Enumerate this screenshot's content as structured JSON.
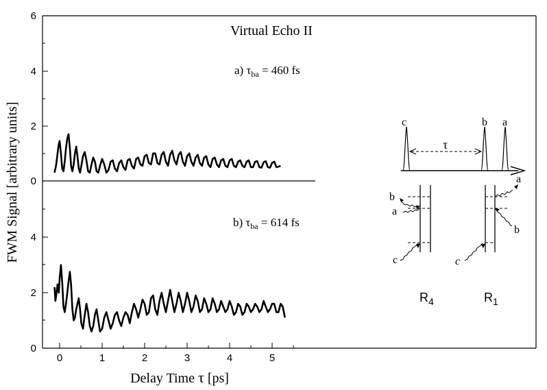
{
  "chart_data": [
    {
      "type": "line",
      "panel_label": "a)",
      "tau_ba_value": "460 fs",
      "title": "Virtual Echo II",
      "ylim": [
        0,
        6
      ],
      "yticks": [
        0,
        2,
        4,
        6
      ],
      "xlim": [
        -0.2,
        5.3
      ],
      "series": [
        {
          "x": [
            -0.12,
            -0.08,
            -0.04,
            -0.02,
            0.0,
            0.03,
            0.06,
            0.09,
            0.12,
            0.15,
            0.18,
            0.21,
            0.24,
            0.27,
            0.3,
            0.33,
            0.36,
            0.39,
            0.42,
            0.45,
            0.48,
            0.51,
            0.55,
            0.59,
            0.63,
            0.67,
            0.71,
            0.75,
            0.79,
            0.83,
            0.87,
            0.91,
            0.95,
            1.0,
            1.05,
            1.1,
            1.15,
            1.2,
            1.25,
            1.3,
            1.35,
            1.4,
            1.45,
            1.5,
            1.55,
            1.6,
            1.65,
            1.7,
            1.75,
            1.8,
            1.85,
            1.9,
            1.95,
            2.0,
            2.05,
            2.1,
            2.15,
            2.2,
            2.25,
            2.3,
            2.35,
            2.4,
            2.45,
            2.5,
            2.55,
            2.6,
            2.65,
            2.7,
            2.75,
            2.8,
            2.85,
            2.9,
            2.95,
            3.0,
            3.05,
            3.1,
            3.15,
            3.2,
            3.25,
            3.3,
            3.35,
            3.4,
            3.45,
            3.5,
            3.55,
            3.6,
            3.65,
            3.7,
            3.75,
            3.8,
            3.85,
            3.9,
            3.95,
            4.0,
            4.05,
            4.1,
            4.15,
            4.2,
            4.25,
            4.3,
            4.35,
            4.4,
            4.45,
            4.5,
            4.55,
            4.6,
            4.65,
            4.7,
            4.75,
            4.8,
            4.85,
            4.9,
            4.95,
            5.0,
            5.05,
            5.1,
            5.15,
            5.2
          ],
          "y": [
            0.3,
            0.6,
            1.1,
            1.35,
            1.45,
            1.0,
            0.45,
            0.35,
            0.7,
            1.2,
            1.55,
            1.7,
            1.2,
            0.55,
            0.35,
            0.6,
            1.0,
            1.25,
            0.9,
            0.45,
            0.3,
            0.55,
            0.9,
            1.05,
            0.75,
            0.35,
            0.3,
            0.6,
            0.85,
            0.7,
            0.35,
            0.3,
            0.55,
            0.8,
            0.6,
            0.3,
            0.4,
            0.7,
            0.75,
            0.45,
            0.35,
            0.65,
            0.75,
            0.5,
            0.4,
            0.75,
            0.8,
            0.55,
            0.45,
            0.8,
            0.85,
            0.6,
            0.55,
            0.9,
            0.95,
            0.65,
            0.6,
            1.0,
            1.0,
            0.65,
            0.6,
            0.95,
            1.05,
            0.7,
            0.55,
            0.95,
            1.1,
            0.75,
            0.6,
            0.95,
            1.05,
            0.7,
            0.55,
            0.9,
            1.0,
            0.7,
            0.55,
            0.85,
            0.95,
            0.65,
            0.55,
            0.85,
            0.9,
            0.6,
            0.5,
            0.8,
            0.85,
            0.6,
            0.5,
            0.75,
            0.8,
            0.55,
            0.5,
            0.75,
            0.8,
            0.55,
            0.5,
            0.7,
            0.75,
            0.55,
            0.5,
            0.7,
            0.75,
            0.5,
            0.5,
            0.7,
            0.72,
            0.5,
            0.48,
            0.68,
            0.72,
            0.5,
            0.48,
            0.66,
            0.7,
            0.5,
            0.52,
            0.55
          ]
        }
      ]
    },
    {
      "type": "line",
      "panel_label": "b)",
      "tau_ba_value": "614 fs",
      "xlabel_main": "Delay Time ",
      "xlabel_sym": "τ",
      "xlabel_unit": " [ps]",
      "ylabel": "FWM Signal [arbitrary units]",
      "ylim": [
        0,
        6
      ],
      "yticks": [
        0,
        2,
        4
      ],
      "xlim": [
        -0.2,
        5.5
      ],
      "xticks": [
        0,
        1,
        2,
        3,
        4,
        5
      ],
      "series": [
        {
          "x": [
            -0.12,
            -0.1,
            -0.08,
            -0.05,
            -0.02,
            0.0,
            0.03,
            0.06,
            0.09,
            0.12,
            0.15,
            0.18,
            0.21,
            0.24,
            0.27,
            0.3,
            0.33,
            0.36,
            0.39,
            0.42,
            0.45,
            0.48,
            0.51,
            0.55,
            0.59,
            0.63,
            0.67,
            0.71,
            0.75,
            0.79,
            0.83,
            0.87,
            0.91,
            0.95,
            1.0,
            1.05,
            1.1,
            1.15,
            1.2,
            1.25,
            1.3,
            1.35,
            1.4,
            1.45,
            1.5,
            1.55,
            1.6,
            1.65,
            1.7,
            1.75,
            1.8,
            1.85,
            1.9,
            1.95,
            2.0,
            2.05,
            2.1,
            2.15,
            2.2,
            2.25,
            2.3,
            2.35,
            2.4,
            2.45,
            2.5,
            2.55,
            2.6,
            2.65,
            2.7,
            2.75,
            2.8,
            2.85,
            2.9,
            2.95,
            3.0,
            3.05,
            3.1,
            3.15,
            3.2,
            3.25,
            3.3,
            3.35,
            3.4,
            3.45,
            3.5,
            3.55,
            3.6,
            3.65,
            3.7,
            3.75,
            3.8,
            3.85,
            3.9,
            3.95,
            4.0,
            4.05,
            4.1,
            4.15,
            4.2,
            4.25,
            4.3,
            4.35,
            4.4,
            4.45,
            4.5,
            4.55,
            4.6,
            4.65,
            4.7,
            4.75,
            4.8,
            4.85,
            4.9,
            4.95,
            5.0,
            5.05,
            5.1,
            5.15,
            5.2,
            5.25,
            5.3
          ],
          "y": [
            2.2,
            1.7,
            1.9,
            2.3,
            2.0,
            2.5,
            3.0,
            2.4,
            1.5,
            1.3,
            1.6,
            2.0,
            2.4,
            2.75,
            2.3,
            1.4,
            1.0,
            1.1,
            1.4,
            1.6,
            1.8,
            1.4,
            0.9,
            0.7,
            1.2,
            1.6,
            1.3,
            0.8,
            0.6,
            0.8,
            1.2,
            1.4,
            1.0,
            0.6,
            0.7,
            1.1,
            1.3,
            1.0,
            0.7,
            0.9,
            1.2,
            1.3,
            1.0,
            0.8,
            1.1,
            1.3,
            1.2,
            0.9,
            1.3,
            1.6,
            1.4,
            1.1,
            1.4,
            1.75,
            1.6,
            1.2,
            1.3,
            1.8,
            1.9,
            1.4,
            1.2,
            1.7,
            2.0,
            1.6,
            1.3,
            1.7,
            2.1,
            1.7,
            1.3,
            1.6,
            2.0,
            1.7,
            1.3,
            1.6,
            2.0,
            1.7,
            1.3,
            1.5,
            1.9,
            1.7,
            1.3,
            1.4,
            1.8,
            1.6,
            1.3,
            1.4,
            1.8,
            1.6,
            1.3,
            1.4,
            1.7,
            1.5,
            1.3,
            1.4,
            1.7,
            1.5,
            1.2,
            1.3,
            1.6,
            1.5,
            1.2,
            1.3,
            1.6,
            1.5,
            1.3,
            1.4,
            1.6,
            1.5,
            1.3,
            1.4,
            1.7,
            1.5,
            1.3,
            1.4,
            1.6,
            1.6,
            1.3,
            1.3,
            1.6,
            1.5,
            1.1
          ]
        }
      ]
    }
  ],
  "inset": {
    "pulses": [
      "c",
      "b",
      "a"
    ],
    "tau": "τ",
    "r4_labels": [
      "b",
      "a",
      "c"
    ],
    "r1_labels": [
      "a",
      "b",
      "c"
    ],
    "r4_title_main": "R",
    "r4_title_sub": "4",
    "r1_title_main": "R",
    "r1_title_sub": "1"
  },
  "tau_text": "τ",
  "tau_sub": "ba",
  "equals": " = "
}
